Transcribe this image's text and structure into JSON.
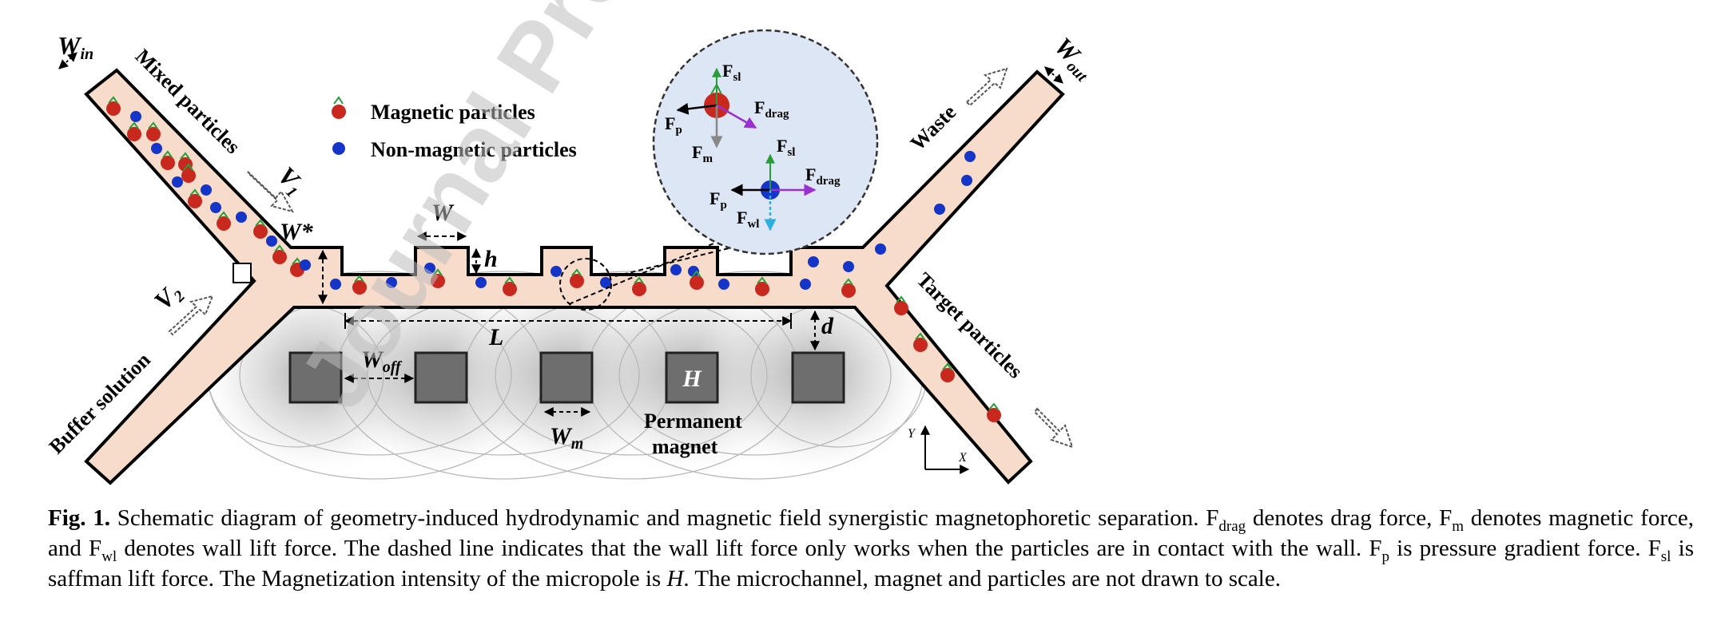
{
  "figure": {
    "watermark": "Journal Pre-proof",
    "legend": {
      "magnetic": "Magnetic particles",
      "nonmagnetic": "Non-magnetic particles"
    },
    "channel": {
      "inlet_mixed": "Mixed particles",
      "inlet_buffer": "Buffer solution",
      "outlet_waste": "Waste",
      "outlet_target": "Target particles",
      "w_in": "W",
      "w_in_sub": "in",
      "w_out": "W",
      "w_out_sub": "out",
      "v1": "V",
      "v1_sub": "1",
      "v2": "V",
      "v2_sub": "2",
      "w_star": "W*",
      "w": "W",
      "h": "h",
      "L": "L",
      "d": "d",
      "w_off": "W",
      "w_off_sub": "off",
      "w_m": "W",
      "w_m_sub": "m",
      "H": "H",
      "magnet_label_1": "Permanent",
      "magnet_label_2": "magnet",
      "axis_x": "X",
      "axis_y": "Y"
    },
    "forces": {
      "F": "F",
      "sl": "sl",
      "drag": "drag",
      "p": "p",
      "m": "m",
      "wl": "wl"
    },
    "colors": {
      "channel_fill": "#f8dccb",
      "magnetic": "#c8281e",
      "nonmagnetic": "#1534c8",
      "magnet": "#6e6e6e",
      "zoom_bg": "#dde6f4"
    }
  },
  "caption": {
    "label": "Fig. 1.",
    "s1": " Schematic diagram of geometry-induced hydrodynamic and magnetic field synergistic magnetophoretic separation. F",
    "drag": "drag",
    "s2": " denotes drag force, F",
    "m": "m",
    "s3": " denotes magnetic force, and F",
    "wl": "wl",
    "s4": " denotes wall lift force. The dashed line indicates that the wall lift force only works when the particles are in contact with the wall. F",
    "p": "p",
    "s5": " is pressure gradient force. F",
    "sl": "sl",
    "s6": " is saffman lift force. The Magnetization intensity of the micropole is ",
    "H": "H",
    "s7": ". The microchannel, magnet and particles are not drawn to scale."
  }
}
